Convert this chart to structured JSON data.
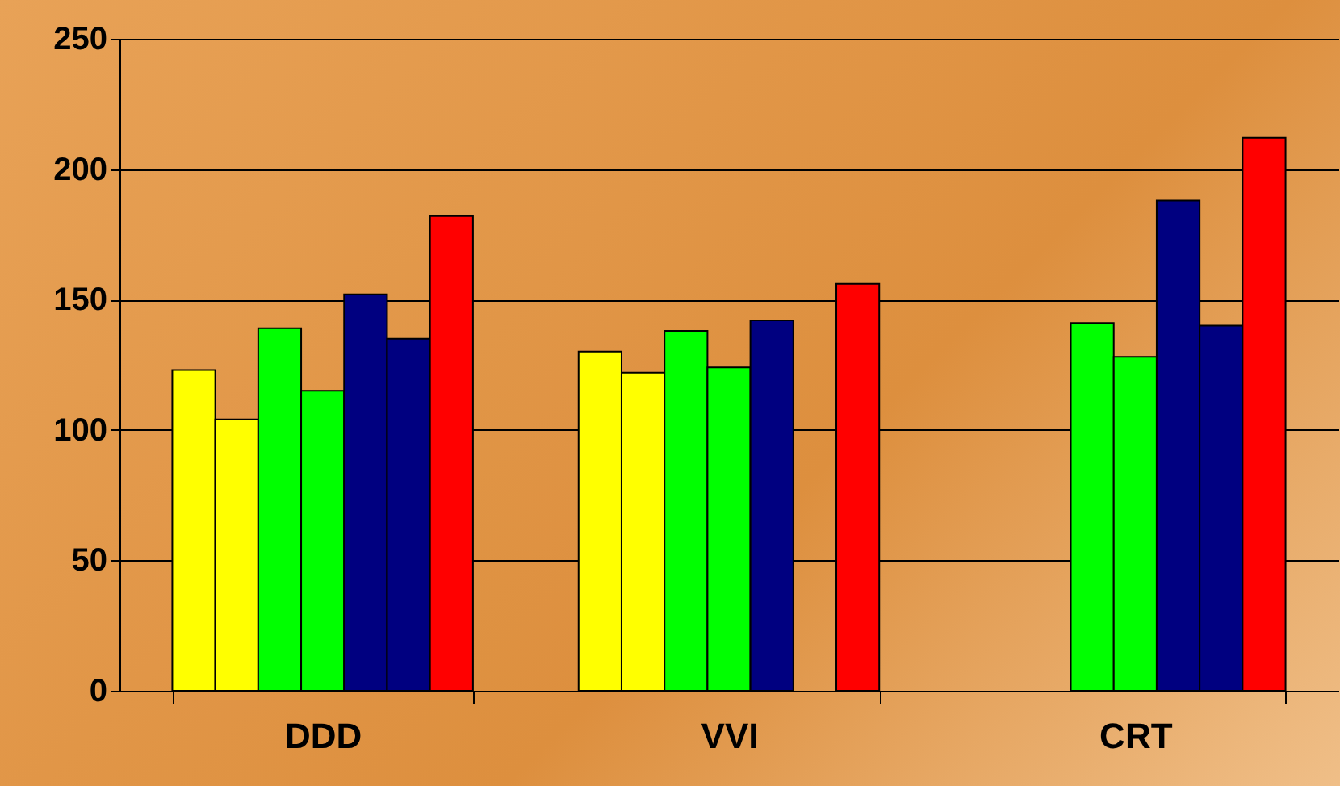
{
  "chart_data": {
    "type": "bar",
    "categories": [
      "DDD",
      "VVI",
      "CRT"
    ],
    "series": [
      {
        "color": "#ffff00",
        "values": [
          123,
          130,
          null
        ]
      },
      {
        "color": "#ffff00",
        "values": [
          104,
          122,
          null
        ]
      },
      {
        "color": "#00ff00",
        "values": [
          139,
          138,
          141
        ]
      },
      {
        "color": "#00ff00",
        "values": [
          115,
          124,
          128
        ]
      },
      {
        "color": "#000080",
        "values": [
          152,
          142,
          188
        ]
      },
      {
        "color": "#000080",
        "values": [
          135,
          null,
          140
        ]
      },
      {
        "color": "#ff0000",
        "values": [
          182,
          156,
          212
        ]
      }
    ],
    "ylim": [
      0,
      250
    ],
    "yticks": [
      0,
      50,
      100,
      150,
      200,
      250
    ],
    "grid": "y"
  }
}
